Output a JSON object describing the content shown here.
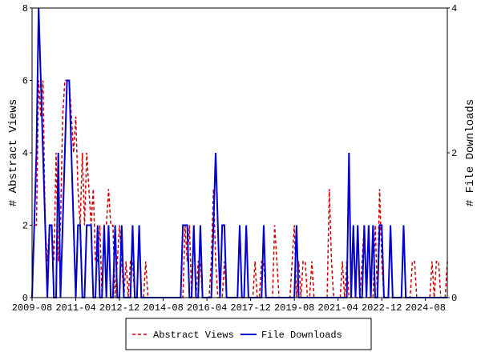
{
  "chart_data": {
    "type": "line",
    "y_label": "# Abstract Views",
    "y2_label": "# File Downloads",
    "x": [
      "2009-08",
      "2009-09",
      "2009-10",
      "2009-11",
      "2009-12",
      "2010-01",
      "2010-02",
      "2010-03",
      "2010-04",
      "2010-05",
      "2010-06",
      "2010-07",
      "2010-08",
      "2010-09",
      "2010-10",
      "2010-11",
      "2010-12",
      "2011-01",
      "2011-02",
      "2011-03",
      "2011-04",
      "2011-05",
      "2011-06",
      "2011-07",
      "2011-08",
      "2011-09",
      "2011-10",
      "2011-11",
      "2011-12",
      "2012-01",
      "2012-02",
      "2012-03",
      "2012-04",
      "2012-05",
      "2012-06",
      "2012-07",
      "2012-08",
      "2012-09",
      "2012-10",
      "2012-11",
      "2012-12",
      "2013-01",
      "2013-02",
      "2013-03",
      "2013-04",
      "2013-05",
      "2013-06",
      "2013-07",
      "2013-08",
      "2013-09",
      "2013-10",
      "2013-11",
      "2013-12",
      "2014-01",
      "2014-02",
      "2014-03",
      "2014-04",
      "2014-05",
      "2014-06",
      "2014-07",
      "2014-08",
      "2014-09",
      "2014-10",
      "2014-11",
      "2014-12",
      "2015-01",
      "2015-02",
      "2015-03",
      "2015-04",
      "2015-05",
      "2015-06",
      "2015-07",
      "2015-08",
      "2015-09",
      "2015-10",
      "2015-11",
      "2015-12",
      "2016-01",
      "2016-02",
      "2016-03",
      "2016-04",
      "2016-05",
      "2016-06",
      "2016-07",
      "2016-08",
      "2016-09",
      "2016-10",
      "2016-11",
      "2016-12",
      "2017-01",
      "2017-02",
      "2017-03",
      "2017-04",
      "2017-05",
      "2017-06",
      "2017-07",
      "2017-08",
      "2017-09",
      "2017-10",
      "2017-11",
      "2017-12",
      "2018-01",
      "2018-02",
      "2018-03",
      "2018-04",
      "2018-05",
      "2018-06",
      "2018-07",
      "2018-08",
      "2018-09",
      "2018-10",
      "2018-11",
      "2018-12",
      "2019-01",
      "2019-02",
      "2019-03",
      "2019-04",
      "2019-05",
      "2019-06",
      "2019-07",
      "2019-08",
      "2019-09",
      "2019-10",
      "2019-11",
      "2019-12",
      "2020-01",
      "2020-02",
      "2020-03",
      "2020-04",
      "2020-05",
      "2020-06",
      "2020-07",
      "2020-08",
      "2020-09",
      "2020-10",
      "2020-11",
      "2020-12",
      "2021-01",
      "2021-02",
      "2021-03",
      "2021-04",
      "2021-05",
      "2021-06",
      "2021-07",
      "2021-08",
      "2021-09",
      "2021-10",
      "2021-11",
      "2021-12",
      "2022-01",
      "2022-02",
      "2022-03",
      "2022-04",
      "2022-05",
      "2022-06",
      "2022-07",
      "2022-08",
      "2022-09",
      "2022-10",
      "2022-11",
      "2022-12",
      "2023-01",
      "2023-02",
      "2023-03",
      "2023-04",
      "2023-05",
      "2023-06",
      "2023-07",
      "2023-08",
      "2023-09",
      "2023-10",
      "2023-11",
      "2023-12",
      "2024-01",
      "2024-02",
      "2024-03",
      "2024-04",
      "2024-05",
      "2024-06",
      "2024-07",
      "2024-08",
      "2024-09",
      "2024-10",
      "2024-11",
      "2024-12",
      "2025-01",
      "2025-02",
      "2025-03",
      "2025-04",
      "2025-05",
      "2025-06"
    ],
    "series": [
      {
        "name": "Abstract Views",
        "color": "#cc0000",
        "dashed": true,
        "axis": "y",
        "values": [
          0,
          2,
          2,
          6,
          5,
          6,
          2,
          1,
          2,
          2,
          1,
          4,
          1,
          2,
          5,
          6,
          6,
          6,
          5,
          4,
          5,
          3,
          2,
          4,
          2,
          4,
          3,
          2,
          3,
          1,
          1,
          2,
          0,
          2,
          2,
          3,
          2,
          2,
          0,
          1,
          2,
          1,
          0,
          1,
          0,
          1,
          1,
          0,
          0,
          2,
          0,
          0,
          1,
          0,
          0,
          0,
          0,
          0,
          0,
          0,
          0,
          0,
          0,
          0,
          0,
          0,
          0,
          0,
          0,
          0,
          2,
          1,
          2,
          0,
          0,
          0,
          1,
          1,
          0,
          0,
          0,
          0,
          1,
          3,
          1,
          0,
          0,
          0,
          1,
          0,
          0,
          0,
          0,
          0,
          0,
          0,
          0,
          0,
          0,
          0,
          0,
          0,
          1,
          0,
          0,
          1,
          1,
          0,
          0,
          0,
          0,
          2,
          1,
          0,
          0,
          0,
          0,
          0,
          0,
          1,
          2,
          0,
          1,
          0,
          1,
          1,
          0,
          0,
          1,
          0,
          0,
          0,
          0,
          0,
          0,
          0,
          3,
          1,
          0,
          0,
          0,
          0,
          1,
          0,
          1,
          0,
          0,
          0,
          0,
          0,
          0,
          1,
          2,
          0,
          0,
          0,
          0,
          2,
          0,
          3,
          1,
          0,
          0,
          0,
          0,
          0,
          0,
          0,
          0,
          0,
          0,
          0,
          0,
          0,
          1,
          1,
          0,
          0,
          0,
          0,
          0,
          0,
          0,
          1,
          0,
          1,
          1,
          0,
          0,
          0,
          1
        ]
      },
      {
        "name": "File Downloads",
        "color": "#0000cc",
        "dashed": false,
        "axis": "y2",
        "values": [
          0,
          1,
          2,
          4,
          3,
          2,
          1,
          0,
          1,
          1,
          0,
          0,
          2,
          0,
          1,
          2,
          3,
          3,
          2,
          1,
          0,
          1,
          1,
          0,
          0,
          1,
          1,
          1,
          0,
          0,
          1,
          0,
          0,
          1,
          0,
          1,
          0,
          0,
          1,
          0,
          0,
          1,
          0,
          0,
          0,
          0,
          1,
          0,
          0,
          1,
          0,
          0,
          0,
          0,
          0,
          0,
          0,
          0,
          0,
          0,
          0,
          0,
          0,
          0,
          0,
          0,
          0,
          0,
          0,
          1,
          1,
          1,
          0,
          0,
          1,
          0,
          0,
          1,
          0,
          0,
          0,
          0,
          0,
          1,
          2,
          1,
          0,
          1,
          1,
          0,
          0,
          0,
          0,
          0,
          0,
          1,
          0,
          0,
          1,
          0,
          0,
          0,
          0,
          0,
          0,
          0,
          1,
          0,
          0,
          0,
          0,
          0,
          0,
          0,
          0,
          0,
          0,
          0,
          0,
          0,
          0,
          1,
          0,
          0,
          0,
          0,
          0,
          0,
          0,
          0,
          0,
          0,
          0,
          0,
          0,
          0,
          0,
          0,
          0,
          0,
          0,
          0,
          0,
          0,
          0,
          2,
          0,
          1,
          0,
          1,
          0,
          0,
          1,
          0,
          1,
          0,
          1,
          0,
          0,
          1,
          1,
          0,
          0,
          0,
          1,
          0,
          0,
          0,
          0,
          0,
          1,
          0,
          0,
          0,
          0,
          0,
          0,
          0,
          0,
          0,
          0,
          0,
          0,
          0,
          0,
          0,
          0,
          0,
          0,
          0,
          0
        ]
      }
    ],
    "xlim": [
      "2009-08",
      "2025-06"
    ],
    "xticks": [
      "2009-08",
      "2011-04",
      "2012-12",
      "2014-08",
      "2016-04",
      "2017-12",
      "2019-08",
      "2021-04",
      "2022-12",
      "2024-08"
    ],
    "ylim": [
      0,
      8
    ],
    "yticks": [
      0,
      2,
      4,
      6,
      8
    ],
    "y2lim": [
      0,
      4
    ],
    "y2ticks": [
      0,
      2,
      4
    ],
    "legend": "bottom"
  }
}
